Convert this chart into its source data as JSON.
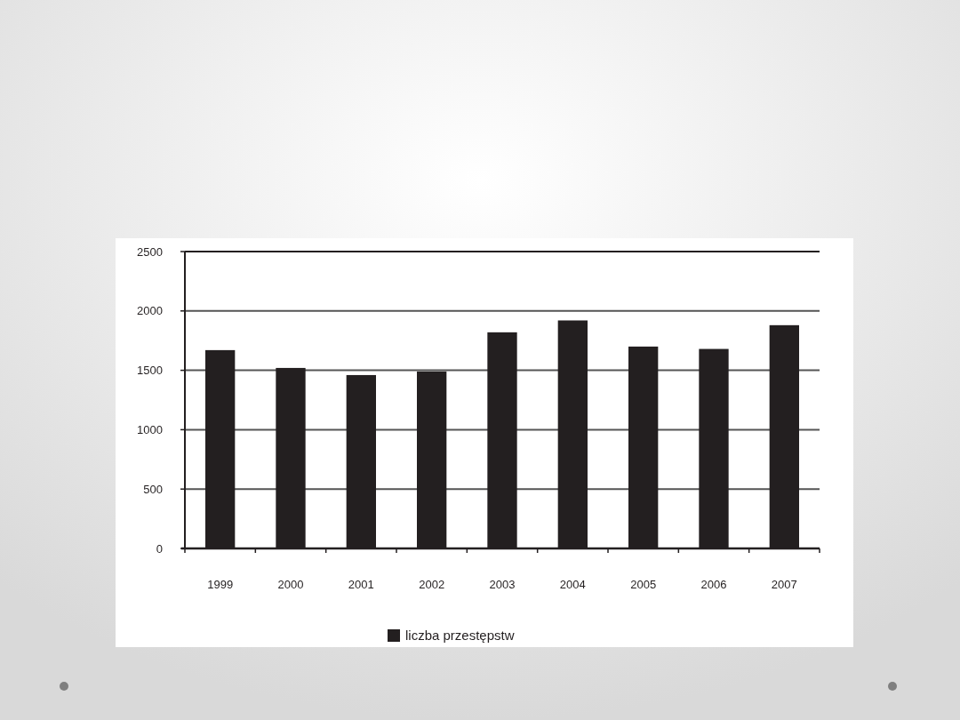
{
  "chart_data": {
    "type": "bar",
    "categories": [
      "1999",
      "2000",
      "2001",
      "2002",
      "2003",
      "2004",
      "2005",
      "2006",
      "2007"
    ],
    "series": [
      {
        "name": "liczba przestępstw",
        "color": "#231f20",
        "values": [
          1670,
          1520,
          1460,
          1490,
          1820,
          1920,
          1700,
          1680,
          1880
        ]
      }
    ],
    "ylim": [
      0,
      2500
    ],
    "yticks": [
      0,
      500,
      1000,
      1500,
      2000,
      2500
    ],
    "grid": "y",
    "legend": "bottom"
  }
}
